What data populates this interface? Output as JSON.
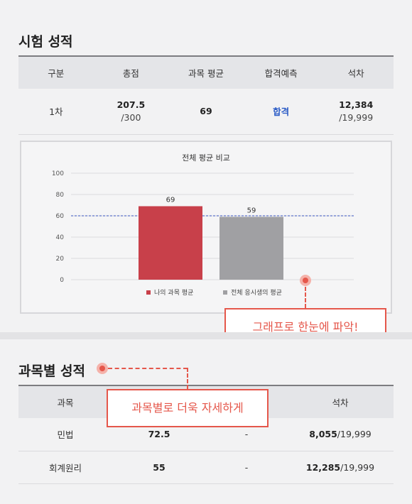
{
  "exam": {
    "title": "시험 성적",
    "headers": [
      "구분",
      "총점",
      "과목 평균",
      "합격예측",
      "석차"
    ],
    "row": {
      "round": "1차",
      "total": "207.5",
      "total_max": "/300",
      "avg": "69",
      "prediction": "합격",
      "rank": "12,384",
      "rank_total": "/19,999"
    }
  },
  "chart_data": {
    "type": "bar",
    "title": "전체 평균 비교",
    "categories": [
      "나의 과목 평균",
      "전체 응시생의 평균"
    ],
    "values": [
      69,
      59
    ],
    "colors": [
      "#c8404a",
      "#a0a0a3"
    ],
    "ylim": [
      0,
      100
    ],
    "yticks": [
      0,
      20,
      40,
      60,
      80,
      100
    ],
    "reference_line": 60,
    "grid": true,
    "legend": "bottom"
  },
  "callouts": {
    "graph": "그래프로 한눈에 파악!",
    "subject": "과목별로 더욱 자세하게"
  },
  "subjects": {
    "title": "과목별 성적",
    "headers": [
      "과목",
      "",
      "",
      "석차"
    ],
    "rows": [
      {
        "subject": "민법",
        "score": "72.5",
        "mid": "-",
        "rank": "8,055",
        "rank_total": "/19,999"
      },
      {
        "subject": "회계원리",
        "score": "55",
        "mid": "-",
        "rank": "12,285",
        "rank_total": "/19,999"
      }
    ]
  }
}
